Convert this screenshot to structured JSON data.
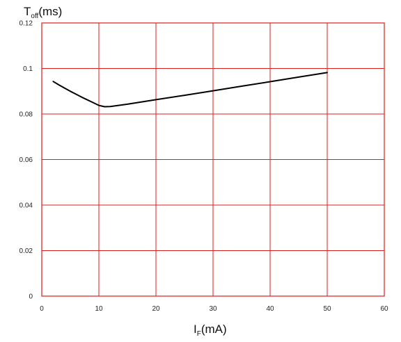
{
  "chart_data": {
    "type": "line",
    "xlabel": {
      "main": "I",
      "sub": "F",
      "unit": "(mA)"
    },
    "ylabel": {
      "main": "T",
      "sub": "off",
      "unit": "(ms)"
    },
    "xlim": [
      0,
      60
    ],
    "ylim": [
      0,
      0.12
    ],
    "xticks": [
      "0",
      "10",
      "20",
      "30",
      "40",
      "50",
      "60"
    ],
    "yticks": [
      "0",
      "0.02",
      "0.04",
      "0.06",
      "0.08",
      "0.1",
      "0.12"
    ],
    "grid": true,
    "grid_color": "#dd1c1c",
    "line_color": "#000000",
    "series": [
      {
        "x": [
          2,
          3,
          4,
          5,
          6,
          7,
          8,
          9,
          10,
          11,
          12,
          15,
          20,
          25,
          30,
          35,
          40,
          45,
          50
        ],
        "y": [
          0.0943,
          0.0928,
          0.0914,
          0.09,
          0.0887,
          0.0874,
          0.0862,
          0.085,
          0.0838,
          0.0832,
          0.0833,
          0.0843,
          0.0863,
          0.0882,
          0.0902,
          0.0922,
          0.0942,
          0.0962,
          0.0982
        ]
      }
    ]
  }
}
